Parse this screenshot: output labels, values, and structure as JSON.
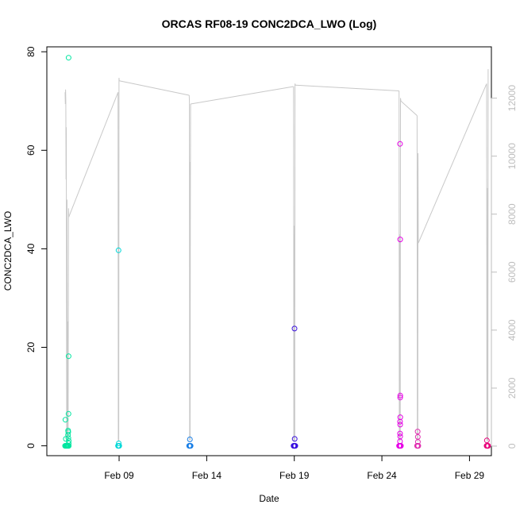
{
  "chart_data": {
    "type": "scatter",
    "title": "ORCAS RF08-19 CONC2DCA_LWO (Log)",
    "xlabel": "Date",
    "ylabel": "CONC2DCA_LWO",
    "x_axis": {
      "type": "date",
      "min": "2016-02-04T21:00",
      "max": "2016-03-01T06:00",
      "ticks": [
        "2016-02-09",
        "2016-02-14",
        "2016-02-19",
        "2016-02-24",
        "2016-02-29"
      ],
      "tick_labels": [
        "Feb 09",
        "Feb 14",
        "Feb 19",
        "Feb 24",
        "Feb 29"
      ]
    },
    "y_axis": {
      "min": -2,
      "max": 81,
      "ticks": [
        0,
        20,
        40,
        60,
        80
      ],
      "tick_labels": [
        "0",
        "20",
        "40",
        "60",
        "80"
      ]
    },
    "y2_axis": {
      "color": "#bdbdbd",
      "min": -330,
      "max": 13770,
      "ticks": [
        0,
        2000,
        4000,
        6000,
        8000,
        10000,
        12000
      ],
      "tick_labels": [
        "0",
        "2000",
        "4000",
        "6000",
        "8000",
        "10000",
        "12000"
      ]
    },
    "grid": false,
    "legend": "none",
    "series": [
      {
        "type": "line",
        "axis": "y2",
        "color": "#c8c8c8",
        "segments": [
          {
            "x": [
              "2016-02-05T22:00",
              "2016-02-05T22:20",
              "2016-02-05T22:40",
              "2016-02-05T23:00",
              "2016-02-05T23:20",
              "2016-02-05T23:40",
              "2016-02-06T00:10",
              "2016-02-06T00:40",
              "2016-02-06T01:10",
              "2016-02-06T01:40",
              "2016-02-06T02:10",
              "2016-02-06T02:40",
              "2016-02-06T03:00"
            ],
            "y": [
              12200,
              11800,
              12300,
              11900,
              9200,
              11000,
              200,
              8500,
              300,
              4300,
              200,
              8200,
              7900
            ]
          },
          {
            "x": [
              "2016-02-06T03:00",
              "2016-02-08T22:30"
            ],
            "y": [
              7900,
              12200
            ]
          },
          {
            "x": [
              "2016-02-08T22:30",
              "2016-02-08T22:50",
              "2016-02-08T23:10",
              "2016-02-08T23:30",
              "2016-02-08T23:50",
              "2016-02-09T00:10"
            ],
            "y": [
              12200,
              200,
              8800,
              150,
              12700,
              12600
            ]
          },
          {
            "x": [
              "2016-02-09T00:10",
              "2016-02-13T00:00"
            ],
            "y": [
              12600,
              12100
            ]
          },
          {
            "x": [
              "2016-02-13T00:00",
              "2016-02-13T00:20",
              "2016-02-13T00:40",
              "2016-02-13T01:00",
              "2016-02-13T01:20",
              "2016-02-13T01:40",
              "2016-02-13T02:00"
            ],
            "y": [
              12100,
              11900,
              200,
              9800,
              200,
              8200,
              11800
            ]
          },
          {
            "x": [
              "2016-02-13T02:00",
              "2016-02-18T23:00"
            ],
            "y": [
              11800,
              12400
            ]
          },
          {
            "x": [
              "2016-02-18T23:00",
              "2016-02-18T23:20",
              "2016-02-18T23:40",
              "2016-02-19T00:00",
              "2016-02-19T00:20",
              "2016-02-19T00:40",
              "2016-02-19T01:00",
              "2016-02-19T01:20"
            ],
            "y": [
              12400,
              200,
              7300,
              150,
              7600,
              200,
              12500,
              12450
            ]
          },
          {
            "x": [
              "2016-02-19T01:20",
              "2016-02-24T23:30"
            ],
            "y": [
              12450,
              12250
            ]
          },
          {
            "x": [
              "2016-02-24T23:30",
              "2016-02-24T23:50",
              "2016-02-25T00:10",
              "2016-02-25T00:30",
              "2016-02-25T00:50",
              "2016-02-25T01:10",
              "2016-02-25T01:30",
              "2016-02-25T02:00"
            ],
            "y": [
              12250,
              200,
              7200,
              150,
              7300,
              200,
              12000,
              11900
            ]
          },
          {
            "x": [
              "2016-02-25T02:00",
              "2016-02-26T00:10"
            ],
            "y": [
              11900,
              11400
            ]
          },
          {
            "x": [
              "2016-02-26T00:10",
              "2016-02-26T00:30",
              "2016-02-26T00:50",
              "2016-02-26T01:10",
              "2016-02-26T01:30",
              "2016-02-26T01:50"
            ],
            "y": [
              11400,
              200,
              7800,
              150,
              10100,
              7000
            ]
          },
          {
            "x": [
              "2016-02-26T01:50",
              "2016-02-29T23:30"
            ],
            "y": [
              7000,
              12500
            ]
          },
          {
            "x": [
              "2016-02-29T23:30",
              "2016-02-29T23:50",
              "2016-03-01T00:10",
              "2016-03-01T00:30",
              "2016-03-01T00:50",
              "2016-03-01T01:10",
              "2016-03-01T01:30"
            ],
            "y": [
              12500,
              200,
              6400,
              150,
              8900,
              200,
              13000
            ]
          }
        ]
      },
      {
        "type": "points",
        "axis": "y",
        "color": "#00e6a0",
        "x": [
          "2016-02-05T22:00",
          "2016-02-05T22:30",
          "2016-02-05T23:00",
          "2016-02-05T23:30",
          "2016-02-06T00:00",
          "2016-02-06T00:30",
          "2016-02-06T01:00",
          "2016-02-06T01:30",
          "2016-02-06T02:00",
          "2016-02-06T02:30",
          "2016-02-06T03:00",
          "2016-02-05T22:30",
          "2016-02-05T23:00",
          "2016-02-06T02:00",
          "2016-02-06T02:10",
          "2016-02-06T02:20",
          "2016-02-06T02:30",
          "2016-02-06T02:40",
          "2016-02-06T02:50",
          "2016-02-06T02:50",
          "2016-02-06T03:00",
          "2016-02-06T03:00"
        ],
        "y": [
          0,
          0,
          0,
          0,
          0,
          0,
          0,
          0,
          0,
          0,
          0,
          5.3,
          1.4,
          2.2,
          3.1,
          2.8,
          1.6,
          6.5,
          18.2,
          78.8,
          0.5,
          1.0
        ]
      },
      {
        "type": "points",
        "axis": "y",
        "color": "#00d8d8",
        "x": [
          "2016-02-08T22:30",
          "2016-02-08T22:50",
          "2016-02-08T23:10",
          "2016-02-08T23:30",
          "2016-02-08T23:50",
          "2016-02-09T00:10",
          "2016-02-08T23:10",
          "2016-02-08T23:30"
        ],
        "y": [
          0,
          0,
          0,
          0,
          0,
          0,
          39.7,
          0.5
        ]
      },
      {
        "type": "points",
        "axis": "y",
        "color": "#1a7fe6",
        "x": [
          "2016-02-13T00:00",
          "2016-02-13T00:20",
          "2016-02-13T00:40",
          "2016-02-13T01:00",
          "2016-02-13T01:20",
          "2016-02-13T01:40",
          "2016-02-13T02:00",
          "2016-02-13T01:00"
        ],
        "y": [
          0,
          0,
          0,
          0,
          0,
          0,
          0,
          1.3
        ]
      },
      {
        "type": "points",
        "axis": "y",
        "color": "#3a10e0",
        "x": [
          "2016-02-18T23:00",
          "2016-02-18T23:20",
          "2016-02-18T23:40",
          "2016-02-19T00:00",
          "2016-02-19T00:20",
          "2016-02-19T00:40",
          "2016-02-19T01:00",
          "2016-02-19T01:20",
          "2016-02-19T00:20",
          "2016-02-19T00:30"
        ],
        "y": [
          0,
          0,
          0,
          0,
          0,
          0,
          0,
          0,
          23.8,
          1.4
        ]
      },
      {
        "type": "points",
        "axis": "y",
        "color": "#e600e6",
        "x": [
          "2016-02-24T23:30",
          "2016-02-24T23:50",
          "2016-02-25T00:10",
          "2016-02-25T00:30",
          "2016-02-25T00:50",
          "2016-02-25T01:10",
          "2016-02-25T01:30",
          "2016-02-25T02:00",
          "2016-02-25T00:50",
          "2016-02-25T01:00",
          "2016-02-25T01:10",
          "2016-02-25T01:00",
          "2016-02-25T01:10",
          "2016-02-25T00:50",
          "2016-02-25T01:00",
          "2016-02-25T00:50",
          "2016-02-25T01:00",
          "2016-02-25T00:50"
        ],
        "y": [
          0,
          0,
          0,
          0,
          0,
          0,
          0,
          0,
          61.3,
          41.9,
          10.2,
          9.8,
          5.8,
          4.9,
          4.3,
          2.5,
          1.9,
          0.9
        ]
      },
      {
        "type": "points",
        "axis": "y",
        "color": "#e030b0",
        "x": [
          "2016-02-26T00:10",
          "2016-02-26T00:30",
          "2016-02-26T00:50",
          "2016-02-26T01:10",
          "2016-02-26T01:30",
          "2016-02-26T01:50",
          "2016-02-26T01:00",
          "2016-02-26T01:10",
          "2016-02-26T01:20"
        ],
        "y": [
          0,
          0,
          0,
          0,
          0,
          0,
          2.9,
          1.8,
          0.8
        ]
      },
      {
        "type": "points",
        "axis": "y",
        "color": "#e8007a",
        "x": [
          "2016-02-29T23:30",
          "2016-02-29T23:50",
          "2016-03-01T00:10",
          "2016-03-01T00:30",
          "2016-03-01T00:50",
          "2016-03-01T01:10",
          "2016-03-01T01:30",
          "2016-02-29T23:50"
        ],
        "y": [
          0,
          0,
          0,
          0,
          0,
          0,
          0,
          1.1
        ]
      }
    ]
  }
}
